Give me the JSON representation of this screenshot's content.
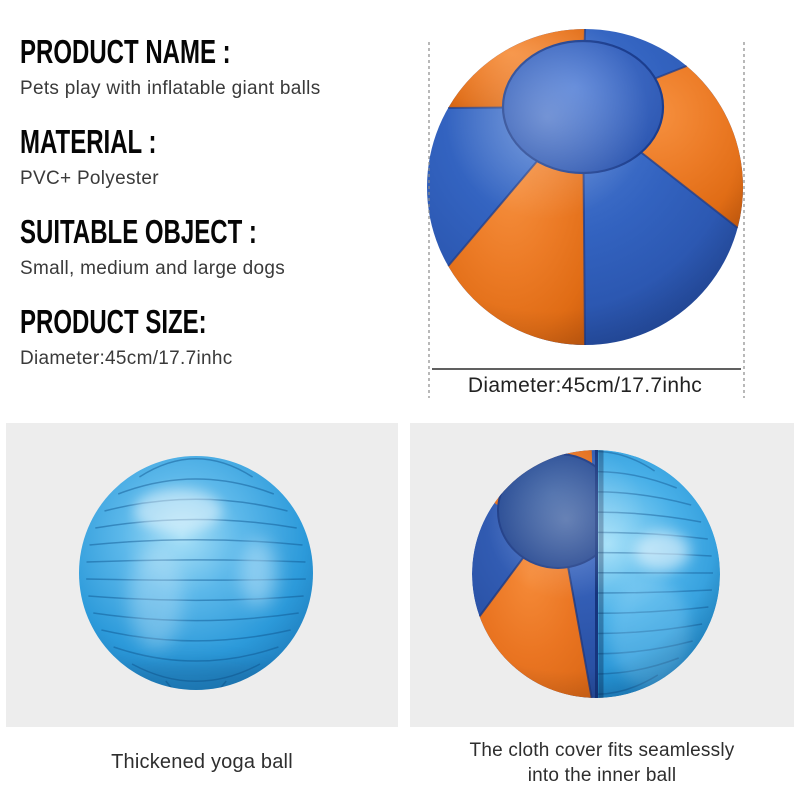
{
  "colors": {
    "cover_blue": "#2e5cb8",
    "cover_blue_dark": "#1e4394",
    "cover_orange": "#e8721c",
    "seam_navy": "#1c3e8f",
    "inner_ball_blue": "#2f9ad8",
    "yoga_ball_blue": "#2c9ada",
    "panel_bg": "#ededed",
    "heading_text": "#060606",
    "body_text": "#3a3a3a",
    "dimension_line": "#2b2b2b"
  },
  "specs": {
    "product_name": {
      "label": "PRODUCT NAME :",
      "value": "Pets play with inflatable giant balls"
    },
    "material": {
      "label": "MATERIAL :",
      "value": "PVC+ Polyester"
    },
    "suitable_object": {
      "label": "SUITABLE OBJECT :",
      "value": "Small, medium and large dogs"
    },
    "product_size": {
      "label": "PRODUCT SIZE:",
      "value": "Diameter:45cm/17.7inhc"
    }
  },
  "hero": {
    "dimension_label": "Diameter:45cm/17.7inhc"
  },
  "gallery": {
    "left": {
      "caption": "Thickened yoga ball"
    },
    "right": {
      "caption": "The cloth cover fits seamlessly into the inner ball"
    }
  }
}
